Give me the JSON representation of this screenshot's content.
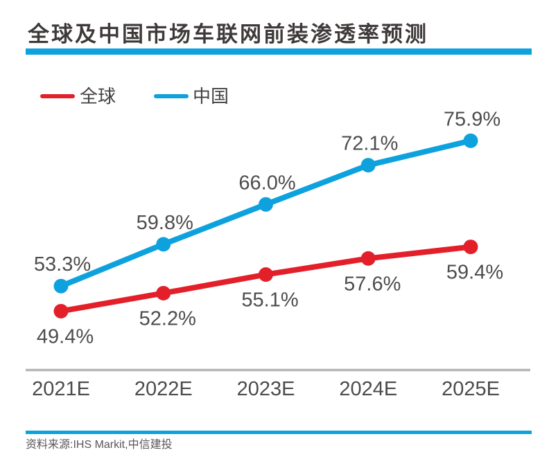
{
  "title": "全球及中国市场车联网前装渗透率预测",
  "source_note": "资料来源:IHS Markit,中信建投",
  "colors": {
    "accent_blue": "#0da2de",
    "global_red": "#e3202a",
    "china_blue": "#0da2de",
    "axis_line": "#b5b5b5",
    "tick_label": "#4b4b4b",
    "value_label": "#4d4d4d",
    "title_text": "#3e3a39",
    "source_text": "#595757"
  },
  "chart_data": {
    "type": "line",
    "title": "全球及中国市场车联网前装渗透率预测",
    "categories": [
      "2021E",
      "2022E",
      "2023E",
      "2024E",
      "2025E"
    ],
    "series": [
      {
        "name": "全球",
        "color": "#e3202a",
        "label_position": "below",
        "values": [
          49.4,
          52.2,
          55.1,
          57.6,
          59.4
        ]
      },
      {
        "name": "中国",
        "color": "#0da2de",
        "label_position": "above",
        "values": [
          53.3,
          59.8,
          66.0,
          72.1,
          75.9
        ]
      }
    ],
    "value_label_format": "{value}%",
    "xlabel": "",
    "ylabel": "",
    "ylim": [
      45,
      80
    ],
    "grid": false,
    "y_axis_shown": false,
    "legend_position": "top-left",
    "source": "资料来源:IHS Markit,中信建投"
  }
}
